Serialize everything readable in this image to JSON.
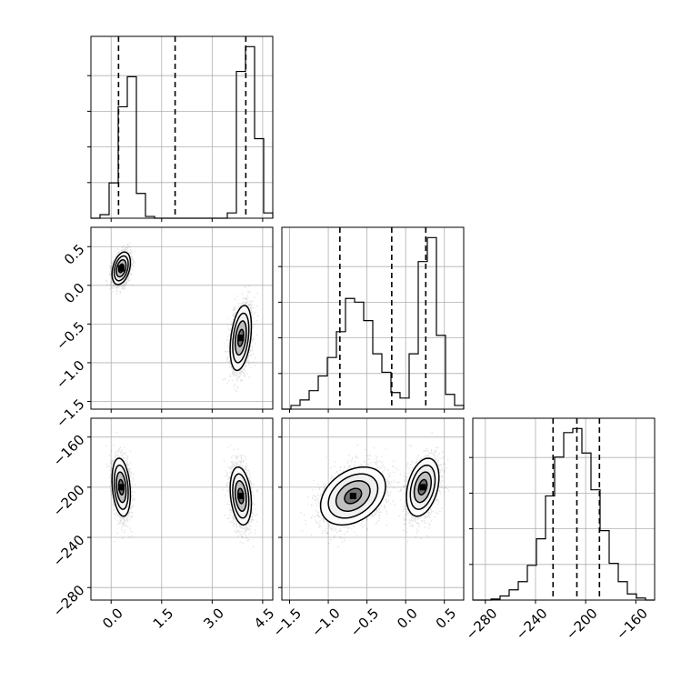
{
  "chart_data": {
    "type": "corner",
    "grid": true,
    "params": [
      {
        "name": "",
        "range": [
          -0.6,
          4.8
        ],
        "ticks": [
          0.0,
          1.5,
          3.0,
          4.5
        ],
        "tick_labels": [
          "0.0",
          "1.5",
          "3.0",
          "4.5"
        ],
        "quantile_lines": [
          0.22,
          1.9,
          4.0
        ],
        "hist_edges": [
          -0.6,
          -0.33,
          -0.06,
          0.21,
          0.48,
          0.75,
          1.02,
          1.29,
          1.56,
          1.83,
          2.1,
          2.37,
          2.64,
          2.91,
          3.18,
          3.45,
          3.72,
          3.99,
          4.26,
          4.53,
          4.8
        ],
        "hist_counts": [
          0.0,
          0.02,
          0.2,
          0.63,
          0.8,
          0.14,
          0.01,
          0.0,
          0.0,
          0.0,
          0.0,
          0.0,
          0.0,
          0.0,
          0.0,
          0.03,
          0.83,
          0.97,
          0.45,
          0.03
        ]
      },
      {
        "name": "",
        "range": [
          -1.6,
          0.75
        ],
        "ticks": [
          -1.5,
          -1.0,
          -0.5,
          0.0,
          0.5
        ],
        "tick_labels": [
          "−1.5",
          "−1.0",
          "−0.5",
          "0.0",
          "0.5"
        ],
        "quantile_lines": [
          -0.85,
          -0.18,
          0.26
        ],
        "hist_edges": [
          -1.6,
          -1.4825,
          -1.365,
          -1.2475,
          -1.13,
          -1.0125,
          -0.895,
          -0.7775,
          -0.66,
          -0.5425,
          -0.425,
          -0.3075,
          -0.19,
          -0.0725,
          0.045,
          0.1625,
          0.28,
          0.3975,
          0.515,
          0.6325,
          0.75
        ],
        "hist_counts": [
          0.0,
          0.02,
          0.05,
          0.1,
          0.18,
          0.28,
          0.42,
          0.6,
          0.58,
          0.48,
          0.3,
          0.2,
          0.09,
          0.06,
          0.3,
          0.8,
          0.93,
          0.4,
          0.08,
          0.02
        ]
      },
      {
        "name": "",
        "range": [
          -290,
          -145
        ],
        "ticks": [
          -280,
          -240,
          -200,
          -160
        ],
        "tick_labels": [
          "−280",
          "−240",
          "−200",
          "−160"
        ],
        "quantile_lines": [
          -226,
          -207,
          -189
        ],
        "hist_edges": [
          -290,
          -282.75,
          -275.5,
          -268.25,
          -261,
          -253.75,
          -246.5,
          -239.25,
          -232,
          -224.75,
          -217.5,
          -210.25,
          -203,
          -195.75,
          -188.5,
          -181.25,
          -174,
          -166.75,
          -159.5,
          -152.25,
          -145
        ],
        "hist_counts": [
          0.0,
          0.0,
          0.005,
          0.02,
          0.05,
          0.09,
          0.17,
          0.3,
          0.51,
          0.7,
          0.82,
          0.84,
          0.72,
          0.54,
          0.34,
          0.18,
          0.09,
          0.03,
          0.01,
          0.0
        ]
      }
    ],
    "modes": [
      {
        "mean": [
          0.3,
          0.22,
          -200
        ],
        "sd": [
          0.13,
          0.1,
          11
        ],
        "weight": 0.45
      },
      {
        "mean": [
          3.85,
          -0.68,
          -207
        ],
        "sd": [
          0.15,
          0.2,
          11
        ],
        "weight": 0.55
      }
    ]
  }
}
